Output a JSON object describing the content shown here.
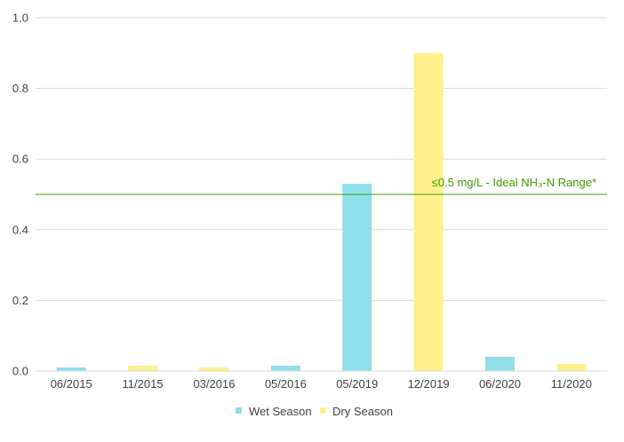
{
  "chart_data": {
    "type": "bar",
    "categories": [
      "06/2015",
      "11/2015",
      "03/2016",
      "05/2016",
      "05/2019",
      "12/2019",
      "06/2020",
      "11/2020"
    ],
    "values": [
      0.01,
      0.015,
      0.01,
      0.015,
      0.53,
      0.9,
      0.04,
      0.02
    ],
    "season": [
      "wet",
      "dry",
      "dry",
      "wet",
      "wet",
      "dry",
      "wet",
      "dry"
    ],
    "series": [
      {
        "name": "Wet Season",
        "color": "#8fe0ea"
      },
      {
        "name": "Dry Season",
        "color": "#fff08c"
      }
    ],
    "ylim": [
      0,
      1.0
    ],
    "yticks": [
      "0.0",
      "0.2",
      "0.4",
      "0.6",
      "0.8",
      "1.0"
    ],
    "grid": true,
    "legend_position": "bottom",
    "reference_line": {
      "value": 0.5,
      "label": "≤0.5 mg/L - Ideal NH₃-N Range*",
      "color": "#3d9a00"
    }
  }
}
